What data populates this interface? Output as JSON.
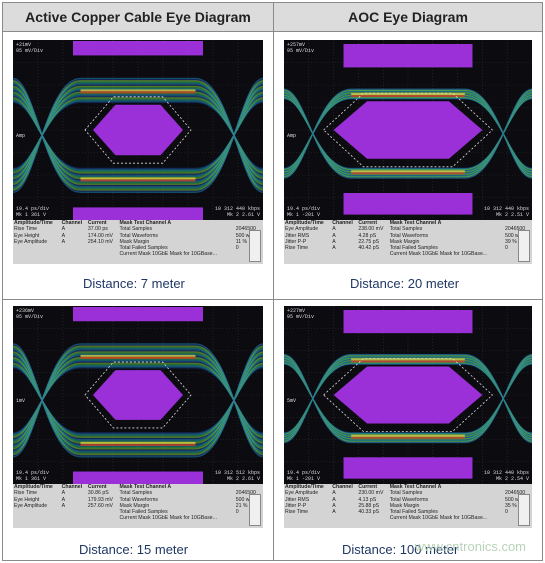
{
  "headers": {
    "left": "Active Copper Cable Eye Diagram",
    "right": "AOC Eye Diagram"
  },
  "captions": {
    "tl": "Distance: 7 meter",
    "tr": "Distance: 20 meter",
    "bl": "Distance: 15 meter",
    "br": "Distance: 100 meter"
  },
  "colors": {
    "mask": "#9b30d9",
    "grid_line": "#8a8a8a",
    "header_bg": "#dcdcdc",
    "caption": "#1f3864"
  },
  "scope_labels": {
    "tl": {
      "top": "+21mV",
      "scale": "95 mV/Div",
      "marker": "Amp",
      "bl1": "19.4 ps/div",
      "bl2": "Mk 1 361 V",
      "br1": "10 312 440 kbps",
      "br2": "Mk 2 2.61 V"
    },
    "tr": {
      "top": "+257mV",
      "scale": "95 mV/Div",
      "marker": "Amp",
      "bl1": "19.4 ps/div",
      "bl2": "Mk 1 -201 V",
      "br1": "10 312 440 kbps",
      "br2": "Mk 2 2.51 V"
    },
    "bl": {
      "top": "+236mV",
      "scale": "95 mV/Div",
      "marker": "1mV",
      "bl1": "19.4 ps/div",
      "bl2": "Mk 1 361 V",
      "br1": "10 312 512 kbps",
      "br2": "Mk 2 2.61 V"
    },
    "br": {
      "top": "+227mV",
      "scale": "95 mV/Div",
      "marker": "5mV",
      "bl1": "19.4 ps/div",
      "bl2": "Mk 1 -201 V",
      "br1": "10 312 440 kbps",
      "br2": "Mk 2 2.54 V"
    }
  },
  "panels": {
    "tl": {
      "title": "Amplitude/Time",
      "mask_title": "Mask Test Channel A",
      "ch": "Channel",
      "cur": "Current",
      "rows": [
        {
          "name": "Rise Time",
          "ch": "A",
          "val": "37.00 ps",
          "mname": "Total Samples",
          "mval": "2046500"
        },
        {
          "name": "Eye Height",
          "ch": "A",
          "val": "174.00 mV",
          "mname": "Total Waveforms",
          "mval": "500 wfms"
        },
        {
          "name": "Eye Amplitude",
          "ch": "A",
          "val": "254.10 mV",
          "mname": "Mask Margin",
          "mval": "11 %"
        },
        {
          "name": "",
          "ch": "",
          "val": "",
          "mname": "Total Failed Samples",
          "mval": "0"
        },
        {
          "name": "",
          "ch": "",
          "val": "",
          "mname": "Current Mask  10GbE Mask for 10GBase...",
          "mval": ""
        }
      ]
    },
    "tr": {
      "title": "Amplitude/Time",
      "mask_title": "Mask Test Channel A",
      "ch": "Channel",
      "cur": "Current",
      "rows": [
        {
          "name": "Eye Amplitude",
          "ch": "A",
          "val": "238.00 mV",
          "mname": "Total Samples",
          "mval": "2046500"
        },
        {
          "name": "Jitter RMS",
          "ch": "A",
          "val": "4.28 pS",
          "mname": "Total Waveforms",
          "mval": "500 wfms"
        },
        {
          "name": "Jitter P-P",
          "ch": "A",
          "val": "22.75 pS",
          "mname": "Mask Margin",
          "mval": "39 %"
        },
        {
          "name": "Rise Time",
          "ch": "A",
          "val": "40.42 pS",
          "mname": "Total Failed Samples",
          "mval": "0"
        },
        {
          "name": "",
          "ch": "",
          "val": "",
          "mname": "Current Mask  10GbE Mask for 10GBase...",
          "mval": ""
        }
      ]
    },
    "bl": {
      "title": "Amplitude/Time",
      "mask_title": "Mask Test Channel A",
      "ch": "Channel",
      "cur": "Current",
      "rows": [
        {
          "name": "Rise Time",
          "ch": "A",
          "val": "30.86 pS",
          "mname": "Total Samples",
          "mval": "2046500"
        },
        {
          "name": "Eye Height",
          "ch": "A",
          "val": "179.93 mV",
          "mname": "Total Waveforms",
          "mval": "500 wfms"
        },
        {
          "name": "Eye Amplitude",
          "ch": "A",
          "val": "257.60 mV",
          "mname": "Mask Margin",
          "mval": "21 %"
        },
        {
          "name": "",
          "ch": "",
          "val": "",
          "mname": "Total Failed Samples",
          "mval": "0"
        },
        {
          "name": "",
          "ch": "",
          "val": "",
          "mname": "Current Mask  10GbE Mask for 10GBase...",
          "mval": ""
        }
      ]
    },
    "br": {
      "title": "Amplitude/Time",
      "mask_title": "Mask Test Channel A",
      "ch": "Channel",
      "cur": "Current",
      "rows": [
        {
          "name": "Eye Amplitude",
          "ch": "A",
          "val": "230.00 mV",
          "mname": "Total Samples",
          "mval": "2046500"
        },
        {
          "name": "Jitter RMS",
          "ch": "A",
          "val": "4.13 pS",
          "mname": "Total Waveforms",
          "mval": "500 wfms"
        },
        {
          "name": "Jitter P-P",
          "ch": "A",
          "val": "25.88 pS",
          "mname": "Mask Margin",
          "mval": "35 %"
        },
        {
          "name": "Rise Time",
          "ch": "A",
          "val": "40.33 pS",
          "mname": "Total Failed Samples",
          "mval": "0"
        },
        {
          "name": "",
          "ch": "",
          "val": "",
          "mname": "Current Mask  10GbE Mask for 10GBase...",
          "mval": ""
        }
      ]
    }
  },
  "watermark": "www.cntronics.com"
}
